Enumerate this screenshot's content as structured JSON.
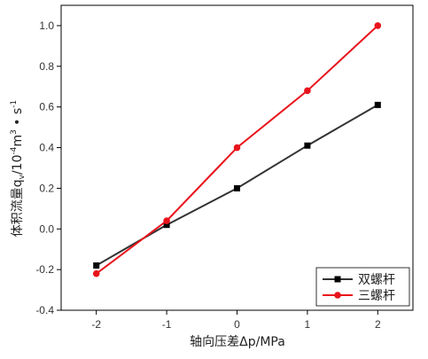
{
  "chart_data": {
    "type": "line",
    "title": "",
    "xlabel": "轴向压差Δp/MPa",
    "ylabel": "体积流量q",
    "ylabel_sub": "v",
    "ylabel_unit": "/10",
    "ylabel_exp1": "-4",
    "ylabel_m": "m",
    "ylabel_exp2": "3",
    "ylabel_dot": " • s",
    "ylabel_exp3": "-1",
    "xlim": [
      -2.5,
      2.5
    ],
    "ylim": [
      -0.4,
      1.1
    ],
    "x_ticks": [
      -2,
      -1,
      0,
      1,
      2
    ],
    "y_ticks": [
      -0.4,
      -0.2,
      0.0,
      0.2,
      0.4,
      0.6,
      0.8,
      1.0
    ],
    "x_tick_labels": [
      "-2",
      "-1",
      "0",
      "1",
      "2"
    ],
    "y_tick_labels": [
      "-0.4",
      "-0.2",
      "0.0",
      "0.2",
      "0.4",
      "0.6",
      "0.8",
      "1.0"
    ],
    "legend_position": "bottom-right",
    "grid": false,
    "x": [
      -2,
      -1,
      0,
      1,
      2
    ],
    "series": [
      {
        "name": "双螺杆",
        "color": "#333333",
        "marker": "square",
        "values": [
          -0.18,
          0.02,
          0.2,
          0.41,
          0.61
        ]
      },
      {
        "name": "三螺杆",
        "color": "#e8141c",
        "marker": "circle",
        "values": [
          -0.22,
          0.04,
          0.4,
          0.68,
          1.0
        ]
      }
    ]
  }
}
